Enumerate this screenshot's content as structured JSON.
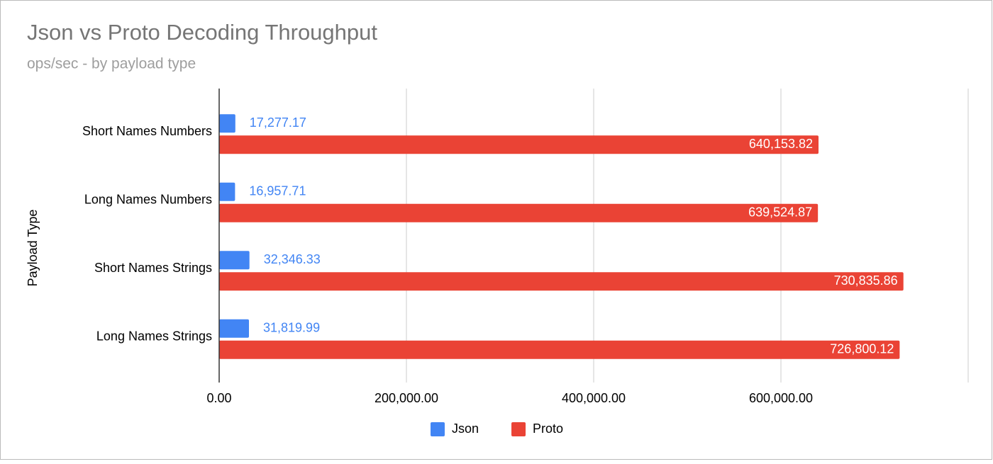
{
  "chart_data": {
    "type": "hbar",
    "title": "Json vs Proto Decoding Throughput",
    "subtitle": "ops/sec - by payload type",
    "y_label": "Payload Type",
    "categories": [
      "Short Names Numbers",
      "Long Names Numbers",
      "Short Names Strings",
      "Long Names Strings"
    ],
    "series": [
      {
        "name": "Json",
        "color": "#4285f4",
        "values": [
          17277.17,
          16957.71,
          32346.33,
          31819.99
        ],
        "value_labels": [
          "17,277.17",
          "16,957.71",
          "32,346.33",
          "31,819.99"
        ]
      },
      {
        "name": "Proto",
        "color": "#ea4335",
        "values": [
          640153.82,
          639524.87,
          730835.86,
          726800.12
        ],
        "value_labels": [
          "640,153.82",
          "639,524.87",
          "730,835.86",
          "726,800.12"
        ]
      }
    ],
    "xlim": [
      0,
      800000
    ],
    "xticks": [
      {
        "value": 0,
        "label": "0.00"
      },
      {
        "value": 200000,
        "label": "200,000.00"
      },
      {
        "value": 400000,
        "label": "400,000.00"
      },
      {
        "value": 600000,
        "label": "600,000.00"
      }
    ],
    "grid": true,
    "legend": "bottom"
  }
}
